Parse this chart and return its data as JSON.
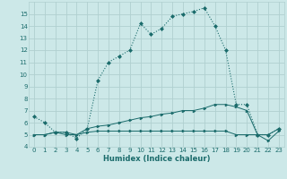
{
  "xlabel": "Humidex (Indice chaleur)",
  "xlim": [
    -0.5,
    23.5
  ],
  "ylim": [
    4,
    16
  ],
  "yticks": [
    4,
    5,
    6,
    7,
    8,
    9,
    10,
    11,
    12,
    13,
    14,
    15
  ],
  "xticks": [
    0,
    1,
    2,
    3,
    4,
    5,
    6,
    7,
    8,
    9,
    10,
    11,
    12,
    13,
    14,
    15,
    16,
    17,
    18,
    19,
    20,
    21,
    22,
    23
  ],
  "bg_color": "#cce8e8",
  "grid_color": "#b0d0d0",
  "line_color": "#1a6b6b",
  "line1_x": [
    0,
    1,
    2,
    3,
    4,
    5,
    6,
    7,
    8,
    9,
    10,
    11,
    12,
    13,
    14,
    15,
    16,
    17,
    18,
    19,
    20,
    21,
    22,
    23
  ],
  "line1_y": [
    6.5,
    6.0,
    5.2,
    5.2,
    4.7,
    5.5,
    9.5,
    11.0,
    11.5,
    12.0,
    14.2,
    13.3,
    13.8,
    14.8,
    15.0,
    15.2,
    15.5,
    14.0,
    12.0,
    7.5,
    7.5,
    5.0,
    5.0,
    5.5
  ],
  "line2_x": [
    0,
    1,
    2,
    3,
    4,
    5,
    6,
    7,
    8,
    9,
    10,
    11,
    12,
    13,
    14,
    15,
    16,
    17,
    18,
    19,
    20,
    21,
    22,
    23
  ],
  "line2_y": [
    5.0,
    5.0,
    5.2,
    5.2,
    5.0,
    5.2,
    5.3,
    5.3,
    5.3,
    5.3,
    5.3,
    5.3,
    5.3,
    5.3,
    5.3,
    5.3,
    5.3,
    5.3,
    5.3,
    5.0,
    5.0,
    5.0,
    4.5,
    5.3
  ],
  "line3_x": [
    0,
    1,
    2,
    3,
    4,
    5,
    6,
    7,
    8,
    9,
    10,
    11,
    12,
    13,
    14,
    15,
    16,
    17,
    18,
    19,
    20,
    21,
    22,
    23
  ],
  "line3_y": [
    5.0,
    5.0,
    5.2,
    5.0,
    5.0,
    5.5,
    5.7,
    5.8,
    6.0,
    6.2,
    6.4,
    6.5,
    6.7,
    6.8,
    7.0,
    7.0,
    7.2,
    7.5,
    7.5,
    7.3,
    7.0,
    5.0,
    5.0,
    5.5
  ]
}
